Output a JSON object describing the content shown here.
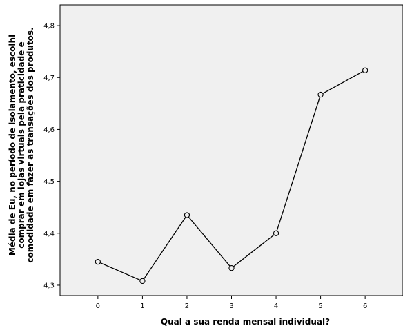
{
  "chart_data": {
    "type": "line",
    "title": "",
    "xlabel": "Qual a sua renda mensal individual?",
    "ylabel": [
      "Média de Eu, no período de isolamento, escolhi",
      "comprar em lojas virtuais pela praticidade e",
      "comodidade em fazer as transações dos produtos."
    ],
    "x": [
      0,
      1,
      2,
      3,
      4,
      5,
      6
    ],
    "series": [
      {
        "values": [
          4.345,
          4.308,
          4.435,
          4.333,
          4.4,
          4.667,
          4.714
        ]
      }
    ],
    "xticks": [
      "0",
      "1",
      "2",
      "3",
      "4",
      "5",
      "6"
    ],
    "yticks": [
      "4,3",
      "4,4",
      "4,5",
      "4,6",
      "4,7",
      "4,8"
    ],
    "ylim": [
      4.28,
      4.84
    ],
    "xlim": [
      -0.85,
      6.85
    ],
    "grid": false,
    "colors": {
      "plot_background": "#f0f0f0",
      "line": "#000000",
      "marker_fill": "#f0f0f0"
    }
  }
}
